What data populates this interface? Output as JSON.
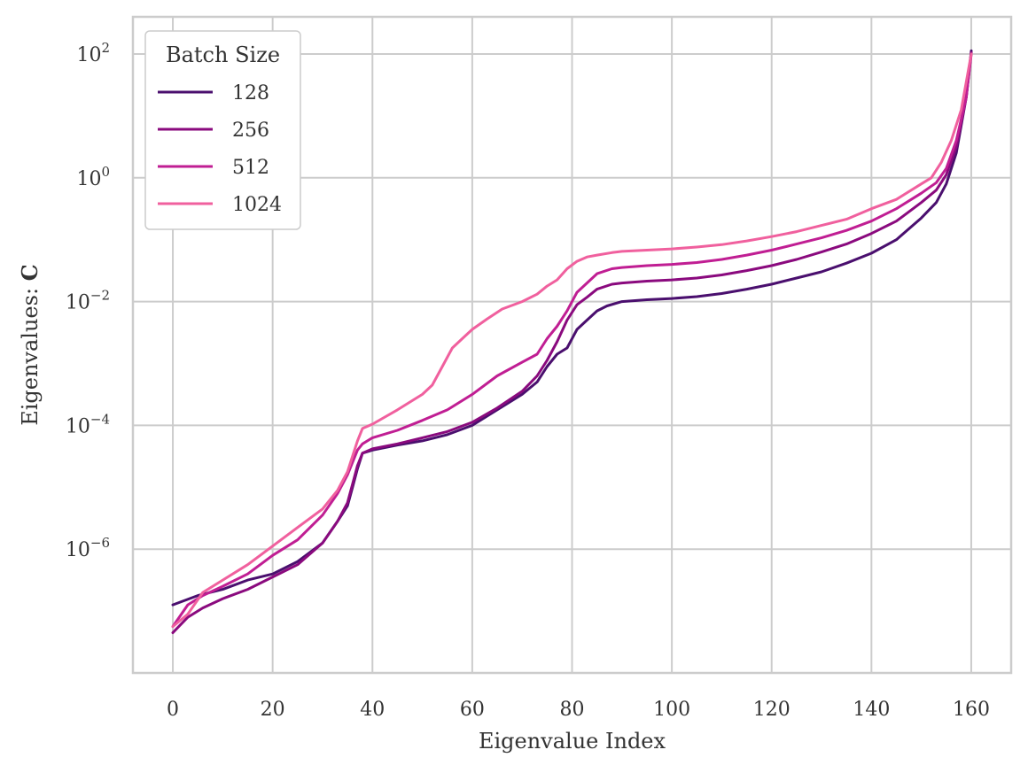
{
  "chart_data": {
    "type": "line",
    "xlabel": "Eigenvalue Index",
    "ylabel": "Eigenvalues:",
    "ylabel_bold": "C",
    "xlim": [
      -8,
      168
    ],
    "ylim_log10": [
      -8.0,
      2.6
    ],
    "yscale": "log",
    "x_ticks": [
      0,
      20,
      40,
      60,
      80,
      100,
      120,
      140,
      160
    ],
    "y_ticks": [
      {
        "exp": 2,
        "base": "10",
        "sup": "2"
      },
      {
        "exp": 0,
        "base": "10",
        "sup": "0"
      },
      {
        "exp": -2,
        "base": "10",
        "sup": "−2"
      },
      {
        "exp": -4,
        "base": "10",
        "sup": "−4"
      },
      {
        "exp": -6,
        "base": "10",
        "sup": "−6"
      }
    ],
    "grid": true,
    "legend": {
      "title": "Batch Size",
      "placement": "top-left"
    },
    "series": [
      {
        "name": "128",
        "color": "#4a0f6e",
        "points": [
          [
            0,
            -6.9
          ],
          [
            5,
            -6.75
          ],
          [
            10,
            -6.65
          ],
          [
            15,
            -6.5
          ],
          [
            20,
            -6.4
          ],
          [
            25,
            -6.2
          ],
          [
            30,
            -5.9
          ],
          [
            33,
            -5.55
          ],
          [
            35,
            -5.3
          ],
          [
            36,
            -5.0
          ],
          [
            37,
            -4.7
          ],
          [
            38,
            -4.45
          ],
          [
            40,
            -4.4
          ],
          [
            45,
            -4.32
          ],
          [
            50,
            -4.25
          ],
          [
            55,
            -4.15
          ],
          [
            60,
            -4.0
          ],
          [
            65,
            -3.75
          ],
          [
            70,
            -3.5
          ],
          [
            73,
            -3.3
          ],
          [
            75,
            -3.05
          ],
          [
            77,
            -2.85
          ],
          [
            79,
            -2.75
          ],
          [
            81,
            -2.45
          ],
          [
            83,
            -2.3
          ],
          [
            85,
            -2.15
          ],
          [
            87,
            -2.07
          ],
          [
            90,
            -2.0
          ],
          [
            95,
            -1.97
          ],
          [
            100,
            -1.95
          ],
          [
            105,
            -1.92
          ],
          [
            110,
            -1.87
          ],
          [
            115,
            -1.8
          ],
          [
            120,
            -1.72
          ],
          [
            125,
            -1.62
          ],
          [
            130,
            -1.52
          ],
          [
            135,
            -1.38
          ],
          [
            140,
            -1.22
          ],
          [
            145,
            -1.0
          ],
          [
            150,
            -0.65
          ],
          [
            153,
            -0.4
          ],
          [
            155,
            -0.1
          ],
          [
            157,
            0.4
          ],
          [
            159,
            1.3
          ],
          [
            160,
            2.05
          ]
        ]
      },
      {
        "name": "256",
        "color": "#8a0a7e",
        "points": [
          [
            0,
            -7.35
          ],
          [
            3,
            -7.1
          ],
          [
            6,
            -6.95
          ],
          [
            10,
            -6.8
          ],
          [
            15,
            -6.65
          ],
          [
            20,
            -6.45
          ],
          [
            25,
            -6.25
          ],
          [
            30,
            -5.9
          ],
          [
            33,
            -5.55
          ],
          [
            35,
            -5.25
          ],
          [
            36,
            -4.95
          ],
          [
            37,
            -4.65
          ],
          [
            38,
            -4.45
          ],
          [
            40,
            -4.38
          ],
          [
            45,
            -4.3
          ],
          [
            50,
            -4.2
          ],
          [
            55,
            -4.1
          ],
          [
            60,
            -3.95
          ],
          [
            65,
            -3.72
          ],
          [
            70,
            -3.45
          ],
          [
            73,
            -3.2
          ],
          [
            75,
            -2.95
          ],
          [
            77,
            -2.65
          ],
          [
            79,
            -2.3
          ],
          [
            81,
            -2.05
          ],
          [
            83,
            -1.93
          ],
          [
            85,
            -1.8
          ],
          [
            88,
            -1.72
          ],
          [
            90,
            -1.7
          ],
          [
            95,
            -1.67
          ],
          [
            100,
            -1.65
          ],
          [
            105,
            -1.62
          ],
          [
            110,
            -1.57
          ],
          [
            115,
            -1.5
          ],
          [
            120,
            -1.42
          ],
          [
            125,
            -1.32
          ],
          [
            130,
            -1.2
          ],
          [
            135,
            -1.07
          ],
          [
            140,
            -0.9
          ],
          [
            145,
            -0.7
          ],
          [
            150,
            -0.4
          ],
          [
            153,
            -0.2
          ],
          [
            155,
            0.05
          ],
          [
            157,
            0.5
          ],
          [
            159,
            1.3
          ],
          [
            160,
            2.02
          ]
        ]
      },
      {
        "name": "512",
        "color": "#c01e93",
        "points": [
          [
            0,
            -7.25
          ],
          [
            3,
            -6.9
          ],
          [
            6,
            -6.75
          ],
          [
            10,
            -6.6
          ],
          [
            15,
            -6.4
          ],
          [
            20,
            -6.1
          ],
          [
            25,
            -5.85
          ],
          [
            30,
            -5.45
          ],
          [
            33,
            -5.1
          ],
          [
            35,
            -4.8
          ],
          [
            37,
            -4.4
          ],
          [
            38,
            -4.3
          ],
          [
            40,
            -4.2
          ],
          [
            45,
            -4.08
          ],
          [
            50,
            -3.92
          ],
          [
            55,
            -3.75
          ],
          [
            60,
            -3.5
          ],
          [
            65,
            -3.2
          ],
          [
            70,
            -2.98
          ],
          [
            73,
            -2.85
          ],
          [
            75,
            -2.6
          ],
          [
            77,
            -2.4
          ],
          [
            79,
            -2.15
          ],
          [
            81,
            -1.85
          ],
          [
            83,
            -1.7
          ],
          [
            85,
            -1.55
          ],
          [
            88,
            -1.47
          ],
          [
            90,
            -1.45
          ],
          [
            95,
            -1.42
          ],
          [
            100,
            -1.4
          ],
          [
            105,
            -1.37
          ],
          [
            110,
            -1.32
          ],
          [
            115,
            -1.25
          ],
          [
            120,
            -1.17
          ],
          [
            125,
            -1.07
          ],
          [
            130,
            -0.97
          ],
          [
            135,
            -0.85
          ],
          [
            140,
            -0.7
          ],
          [
            145,
            -0.5
          ],
          [
            150,
            -0.25
          ],
          [
            153,
            -0.08
          ],
          [
            155,
            0.15
          ],
          [
            157,
            0.6
          ],
          [
            159,
            1.3
          ],
          [
            160,
            2.0
          ]
        ]
      },
      {
        "name": "1024",
        "color": "#f0609e",
        "points": [
          [
            0,
            -7.25
          ],
          [
            3,
            -7.05
          ],
          [
            6,
            -6.7
          ],
          [
            10,
            -6.5
          ],
          [
            15,
            -6.25
          ],
          [
            20,
            -5.95
          ],
          [
            25,
            -5.65
          ],
          [
            30,
            -5.35
          ],
          [
            33,
            -5.05
          ],
          [
            35,
            -4.75
          ],
          [
            37,
            -4.25
          ],
          [
            38,
            -4.05
          ],
          [
            40,
            -3.98
          ],
          [
            45,
            -3.75
          ],
          [
            48,
            -3.6
          ],
          [
            50,
            -3.5
          ],
          [
            52,
            -3.35
          ],
          [
            54,
            -3.05
          ],
          [
            56,
            -2.75
          ],
          [
            58,
            -2.6
          ],
          [
            60,
            -2.45
          ],
          [
            63,
            -2.28
          ],
          [
            66,
            -2.12
          ],
          [
            70,
            -2.0
          ],
          [
            73,
            -1.88
          ],
          [
            75,
            -1.75
          ],
          [
            77,
            -1.65
          ],
          [
            79,
            -1.47
          ],
          [
            81,
            -1.35
          ],
          [
            83,
            -1.28
          ],
          [
            85,
            -1.25
          ],
          [
            88,
            -1.21
          ],
          [
            90,
            -1.19
          ],
          [
            95,
            -1.17
          ],
          [
            100,
            -1.15
          ],
          [
            105,
            -1.12
          ],
          [
            110,
            -1.08
          ],
          [
            115,
            -1.02
          ],
          [
            120,
            -0.95
          ],
          [
            125,
            -0.87
          ],
          [
            130,
            -0.77
          ],
          [
            135,
            -0.67
          ],
          [
            140,
            -0.5
          ],
          [
            145,
            -0.35
          ],
          [
            150,
            -0.1
          ],
          [
            152,
            0.0
          ],
          [
            154,
            0.25
          ],
          [
            156,
            0.6
          ],
          [
            158,
            1.1
          ],
          [
            160,
            2.0
          ]
        ]
      }
    ]
  }
}
